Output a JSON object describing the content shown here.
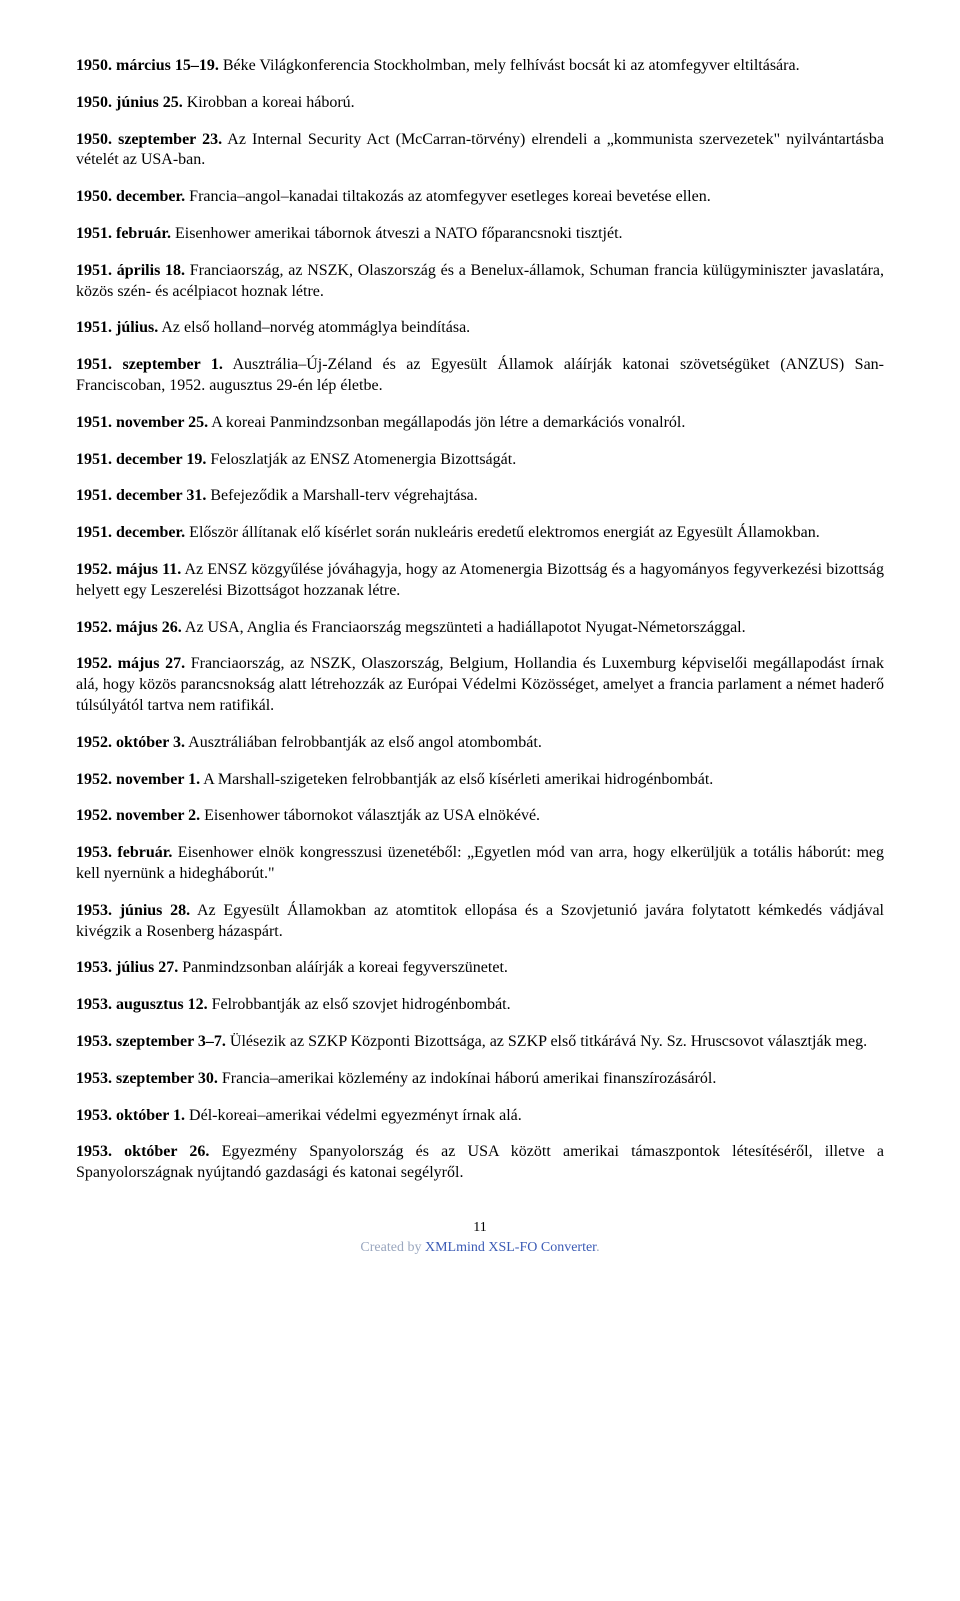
{
  "entries": [
    {
      "date": "1950. március 15–19.",
      "text": " Béke Világkonferencia Stockholmban, mely felhívást bocsát ki az atomfegyver eltiltására."
    },
    {
      "date": "1950. június 25.",
      "text": " Kirobban a koreai háború."
    },
    {
      "date": "1950. szeptember 23.",
      "text": " Az Internal Security Act (McCarran-törvény) elrendeli a „kommunista szervezetek\" nyilvántartásba vételét az USA-ban."
    },
    {
      "date": "1950. december.",
      "text": " Francia–angol–kanadai tiltakozás az atomfegyver esetleges koreai bevetése ellen."
    },
    {
      "date": "1951. február.",
      "text": " Eisenhower amerikai tábornok átveszi a NATO főparancsnoki tisztjét."
    },
    {
      "date": "1951. április 18.",
      "text": "  Franciaország, az NSZK, Olaszország és a Benelux-államok, Schuman francia külügyminiszter javaslatára, közös szén- és acélpiacot hoznak létre."
    },
    {
      "date": "1951. július.",
      "text": " Az első holland–norvég atommáglya beindítása."
    },
    {
      "date": "1951. szeptember 1.",
      "text": "  Ausztrália–Új-Zéland és az Egyesült Államok aláírják katonai szövetségüket (ANZUS) San-Franciscoban, 1952. augusztus 29-én lép életbe."
    },
    {
      "date": "1951. november 25.",
      "text": " A koreai Panmindzsonban megállapodás jön létre a demarkációs vonalról."
    },
    {
      "date": "1951. december 19.",
      "text": " Feloszlatják az ENSZ Atomenergia Bizottságát."
    },
    {
      "date": "1951. december 31.",
      "text": " Befejeződik a Marshall-terv végrehajtása."
    },
    {
      "date": "1951. december.",
      "text": "  Először állítanak elő kísérlet során nukleáris eredetű elektromos energiát az Egyesült Államokban."
    },
    {
      "date": "1952. május 11.",
      "text": "  Az ENSZ közgyűlése jóváhagyja, hogy az Atomenergia Bizottság és a hagyományos fegyverkezési bizottság helyett egy Leszerelési Bizottságot hozzanak létre."
    },
    {
      "date": "1952. május 26.",
      "text": " Az USA, Anglia és Franciaország megszünteti a hadiállapotot Nyugat-Németországgal."
    },
    {
      "date": "1952. május 27.",
      "text": " Franciaország, az NSZK, Olaszország, Belgium, Hollandia és Luxemburg képviselői megállapodást írnak alá, hogy közös parancsnokság alatt létrehozzák az Európai Védelmi Közösséget, amelyet a francia parlament a német haderő túlsúlyától tartva nem ratifikál."
    },
    {
      "date": "1952. október 3.",
      "text": " Ausztráliában felrobbantják az első angol atombombát."
    },
    {
      "date": "1952. november 1.",
      "text": " A Marshall-szigeteken felrobbantják az első kísérleti amerikai hidrogénbombát."
    },
    {
      "date": "1952. november 2.",
      "text": " Eisenhower tábornokot választják az USA elnökévé."
    },
    {
      "date": "1953. február.",
      "text": " Eisenhower elnök kongresszusi üzenetéből: „Egyetlen mód van arra, hogy elkerüljük a totális háborút: meg kell nyernünk a hidegháborút.\""
    },
    {
      "date": "1953. június 28.",
      "text": " Az Egyesült Államokban az atomtitok ellopása és a Szovjetunió javára folytatott kémkedés vádjával kivégzik a Rosenberg házaspárt."
    },
    {
      "date": "1953. július 27.",
      "text": " Panmindzsonban aláírják a koreai fegyverszünetet."
    },
    {
      "date": "1953. augusztus 12.",
      "text": " Felrobbantják az első szovjet hidrogénbombát."
    },
    {
      "date": "1953. szeptember 3–7.",
      "text": " Ülésezik az SZKP Központi Bizottsága, az SZKP első titkárává Ny. Sz. Hruscsovot választják meg."
    },
    {
      "date": "1953. szeptember 30.",
      "text": " Francia–amerikai közlemény az indokínai háború amerikai finanszírozásáról."
    },
    {
      "date": "1953. október 1.",
      "text": " Dél-koreai–amerikai védelmi egyezményt írnak alá."
    },
    {
      "date": "1953. október 26.",
      "text": " Egyezmény Spanyolország és az USA között amerikai támaszpontok létesítéséről, illetve a Spanyolországnak nyújtandó gazdasági és katonai segélyről."
    }
  ],
  "footer": {
    "page_number": "11",
    "created_by": "Created by ",
    "link_text": "XMLmind XSL-FO Converter"
  }
}
